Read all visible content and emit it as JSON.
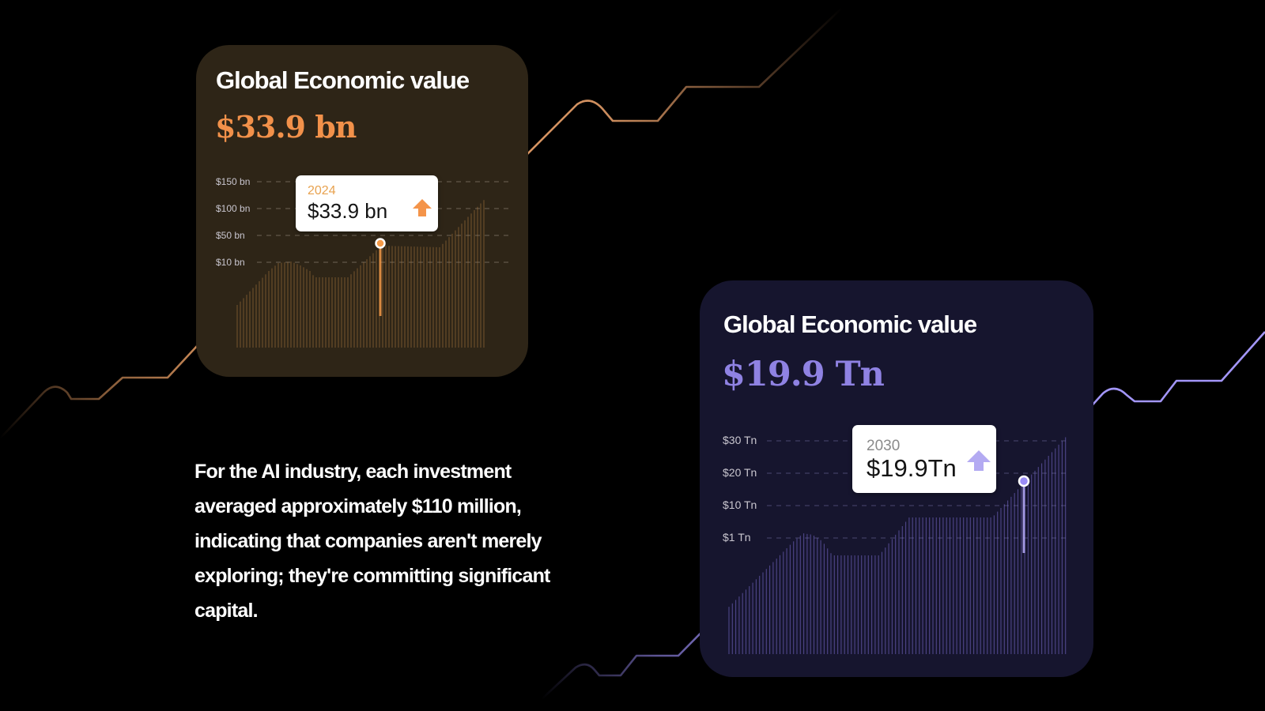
{
  "chart_data": [
    {
      "type": "area",
      "title": "Global Economic value",
      "headline_value": "$33.9 bn",
      "y_tick_labels": [
        "$150 bn",
        "$100 bn",
        "$50 bn",
        "$10 bn"
      ],
      "highlight": {
        "year": "2024",
        "value": "$33.9 bn",
        "trend": "up"
      },
      "accent_color": "#f2914a",
      "grid": "dashed"
    },
    {
      "type": "area",
      "title": "Global Economic value",
      "headline_value": "$19.9 Tn",
      "y_tick_labels": [
        "$30 Tn",
        "$20 Tn",
        "$10 Tn",
        "$1 Tn"
      ],
      "highlight": {
        "year": "2030",
        "value": "$19.9Tn",
        "trend": "up"
      },
      "accent_color": "#8f82e3",
      "grid": "dashed"
    }
  ],
  "body_text": "For the AI industry, each investment averaged approximately $110 million, indicating that companies aren't merely exploring; they're committing significant capital.",
  "colors": {
    "background": "#000000",
    "orange_card": "#2e2517",
    "purple_card": "#16152e"
  }
}
